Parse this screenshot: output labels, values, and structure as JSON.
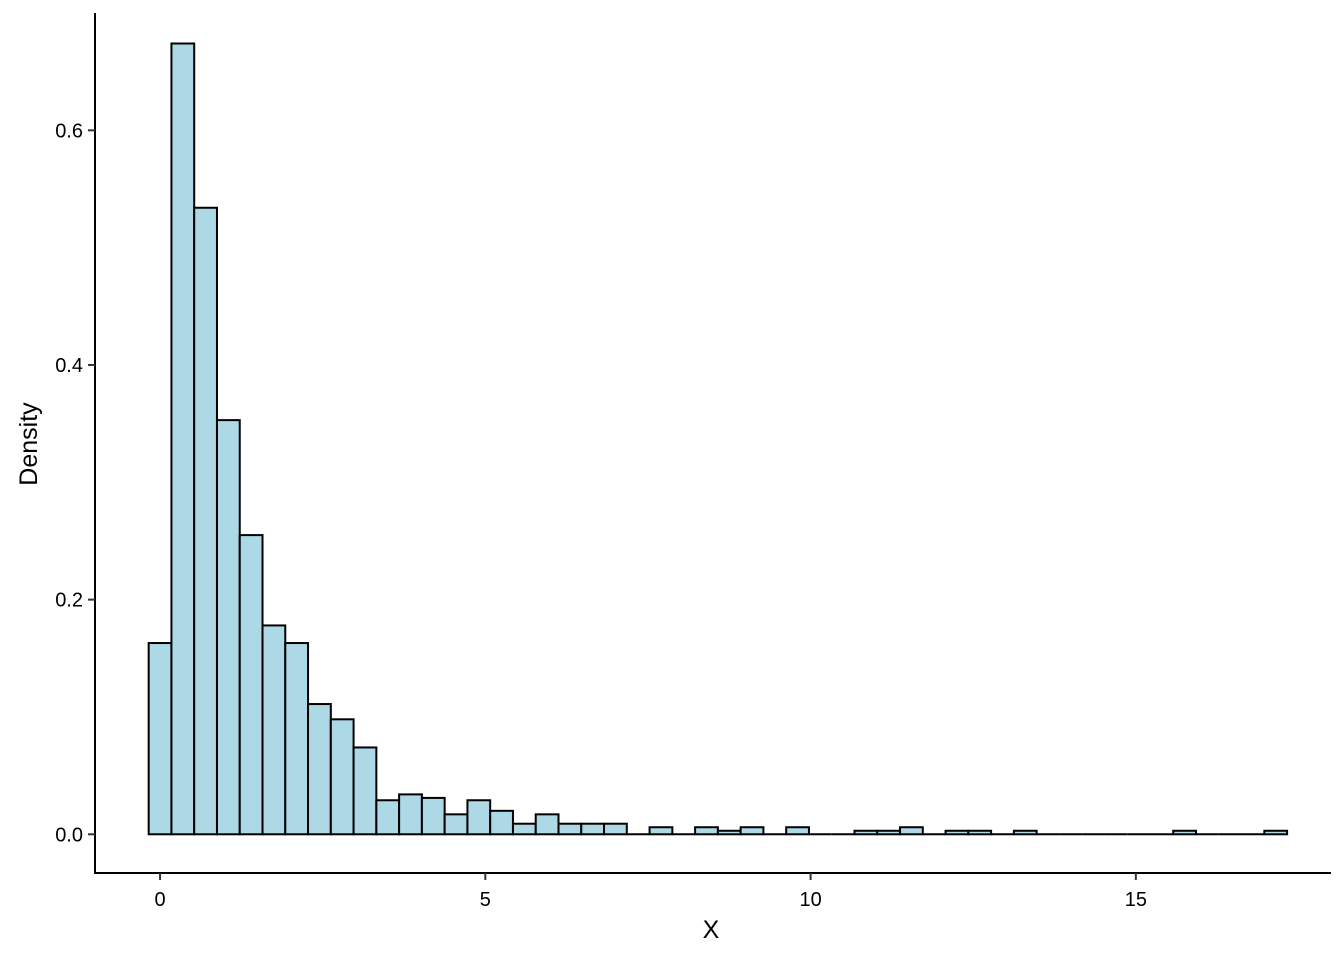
{
  "chart_data": {
    "type": "bar",
    "histogram": true,
    "xlabel": "X",
    "ylabel": "Density",
    "xlim": [
      -1,
      18
    ],
    "ylim": [
      -0.033,
      0.7
    ],
    "x_ticks": [
      0,
      5,
      10,
      15
    ],
    "x_tick_labels": [
      "0",
      "5",
      "10",
      "15"
    ],
    "y_ticks": [
      0.0,
      0.2,
      0.4,
      0.6
    ],
    "y_tick_labels": [
      "0.0",
      "0.2",
      "0.4",
      "0.6"
    ],
    "grid": false,
    "bar_fill": "#add8e6",
    "bar_edge": "#000000",
    "bin_width": 0.35,
    "bin_start": -0.175,
    "densities": [
      0.163,
      0.674,
      0.534,
      0.353,
      0.255,
      0.178,
      0.163,
      0.111,
      0.098,
      0.074,
      0.029,
      0.034,
      0.031,
      0.017,
      0.029,
      0.02,
      0.009,
      0.017,
      0.009,
      0.009,
      0.009,
      0.0,
      0.006,
      0.0,
      0.006,
      0.003,
      0.006,
      0.0,
      0.006,
      0.0,
      0.0,
      0.003,
      0.003,
      0.006,
      0.0,
      0.003,
      0.003,
      0.0,
      0.003,
      0.0,
      0.0,
      0.0,
      0.0,
      0.0,
      0.0,
      0.003,
      0.0,
      0.0,
      0.0,
      0.003
    ]
  }
}
